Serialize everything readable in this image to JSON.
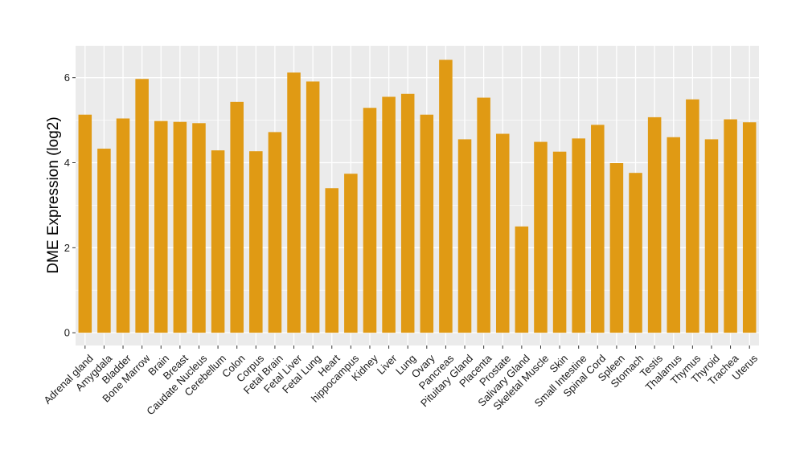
{
  "chart_data": {
    "type": "bar",
    "title": "",
    "xlabel": "",
    "ylabel": "DME Expression (log2)",
    "ylim": [
      -0.3,
      6.75
    ],
    "yticks": [
      0,
      2,
      4,
      6
    ],
    "grid": true,
    "legend": "none",
    "colors": {
      "bar": "#E09A14",
      "panel": "#EBEBEB",
      "grid": "#FFFFFF"
    },
    "categories": [
      "Adrenal gland",
      "Amygdala",
      "Bladder",
      "Bone Marrow",
      "Brain",
      "Breast",
      "Caudate Nucleus",
      "Cerebellum",
      "Colon",
      "Corpus",
      "Fetal Brain",
      "Fetal Liver",
      "Fetal Lung",
      "Heart",
      "hippocampus",
      "Kidney",
      "Liver",
      "Lung",
      "Ovary",
      "Pancreas",
      "Pituitary Gland",
      "Placenta",
      "Prostate",
      "Salivary Gland",
      "Skeletal Muscle",
      "Skin",
      "Small Intestine",
      "Spinal Cord",
      "Spleen",
      "Stomach",
      "Testis",
      "Thalamus",
      "Thymus",
      "Thyroid",
      "Trachea",
      "Uterus"
    ],
    "values": [
      5.13,
      4.33,
      5.04,
      5.97,
      4.98,
      4.96,
      4.93,
      4.29,
      5.43,
      4.27,
      4.72,
      6.12,
      5.91,
      3.4,
      3.74,
      5.29,
      5.55,
      5.62,
      5.13,
      6.42,
      4.55,
      5.53,
      4.68,
      2.5,
      4.49,
      4.26,
      4.57,
      4.89,
      3.99,
      3.76,
      5.07,
      4.6,
      5.49,
      4.55,
      5.02,
      4.95
    ]
  }
}
